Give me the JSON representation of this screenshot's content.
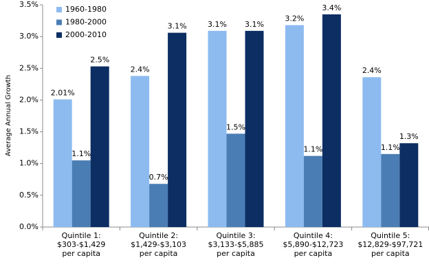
{
  "chart_data": {
    "type": "bar",
    "y_label": "Average Annual Growth",
    "categories": [
      "Quintile 1:\n$303-$1,429\nper capita",
      "Quintile 2:\n$1,429-$3,103\nper capita",
      "Quintile 3:\n$3,133-$5,885\nper capita",
      "Quintile 4:\n$5,890-$12,723\nper capita",
      "Quintile 5:\n$12,829-$97,721\nper capita"
    ],
    "series": [
      {
        "name": "1960-1980",
        "color": "#8dbbf0",
        "values": [
          2.01,
          2.38,
          3.09,
          3.18,
          2.36
        ],
        "value_labels": [
          "2.01%",
          "2.4%",
          "3.1%",
          "3.2%",
          "2.4%"
        ]
      },
      {
        "name": "1980-2000",
        "color": "#4a7db4",
        "values": [
          1.05,
          0.68,
          1.47,
          1.12,
          1.15
        ],
        "value_labels": [
          "1.1%",
          "0.7%",
          "1.5%",
          "1.1%",
          "1.1%"
        ]
      },
      {
        "name": "2000-2010",
        "color": "#0c2e63",
        "values": [
          2.53,
          3.06,
          3.09,
          3.35,
          1.32
        ],
        "value_labels": [
          "2.5%",
          "3.1%",
          "3.1%",
          "3.4%",
          "1.3%"
        ]
      }
    ],
    "ylim": [
      0,
      3.5
    ],
    "yticks": [
      {
        "value": 0,
        "label": "0.0%"
      },
      {
        "value": 0.5,
        "label": "0.5%"
      },
      {
        "value": 1,
        "label": "1.0%"
      },
      {
        "value": 1.5,
        "label": "1.5%"
      },
      {
        "value": 2,
        "label": "2.0%"
      },
      {
        "value": 2.5,
        "label": "2.5%"
      },
      {
        "value": 3,
        "label": "3.0%"
      },
      {
        "value": 3.5,
        "label": "3.5%"
      }
    ],
    "grid": false,
    "legend": "top-left"
  }
}
